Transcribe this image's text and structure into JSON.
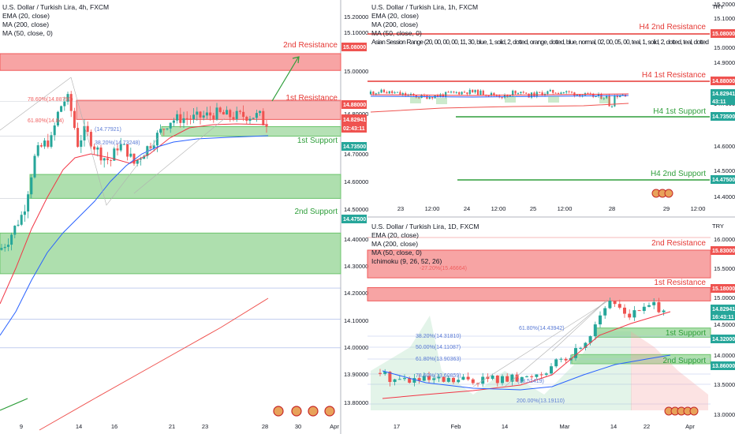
{
  "colors": {
    "bull": "#26a69a",
    "bear": "#ef5350",
    "resistance_zone": "#f05a5a",
    "support_zone": "#6cc46c",
    "resistance_text": "#e53935",
    "support_text": "#2e9e3a",
    "ema": "#f23645",
    "ma200": "#ef5350",
    "ma50": "#2962ff",
    "fib": "#5b7bd5",
    "fib_red": "#f06060",
    "gridline": "#e0e3eb"
  },
  "panels": [
    {
      "id": "h4",
      "header": [
        "U.S. Dollar / Turkish Lira, 4h, FXCM",
        "EMA (20, close)",
        "MA (200, close)",
        "MA (50, close, 0)"
      ],
      "y_ticks": [
        "15.20000",
        "15.10000",
        "15.00000",
        "14.80000",
        "14.70000",
        "14.60000",
        "14.50000",
        "14.40000",
        "14.30000",
        "14.20000",
        "14.10000",
        "14.00000",
        "13.90000",
        "13.80000"
      ],
      "x_ticks": [
        "9",
        "14",
        "16",
        "21",
        "23",
        "28",
        "30",
        "Apr"
      ],
      "levels": [
        {
          "label": "2nd Resistance",
          "price": "15.08000",
          "kind": "res"
        },
        {
          "label": "1st Resistance",
          "price": "14.88000",
          "kind": "res"
        },
        {
          "label": "1st Support",
          "price": "14.73500",
          "kind": "sup"
        },
        {
          "label": "2nd Support",
          "price": "14.47500",
          "kind": "sup"
        }
      ],
      "last_price": "14.82941",
      "countdown": "02:43:11",
      "fibs": [
        "78.60%(14.88799)",
        "61.80%(14.84)",
        "(14.77921)",
        "38.20%(14.73248)"
      ]
    },
    {
      "id": "h1",
      "header": [
        "U.S. Dollar / Turkish Lira, 1h, FXCM",
        "EMA (20, close)",
        "MA (200, close)",
        "MA (50, close, 0)",
        "Asian Session Range (20, 00, 00, 00, 11, 30, blue, 1, solid, 2, dotted, orange, dotted, blue, normal, 02, 00, 05, 00, teal, 1, solid, 2, dotted, teal, dotted"
      ],
      "currency": "TRY",
      "y_ticks": [
        "15.20000",
        "15.10000",
        "15.00000",
        "14.90000",
        "14.80000",
        "14.70000",
        "14.60000",
        "14.50000",
        "14.40000"
      ],
      "x_ticks": [
        "23",
        "12:00",
        "24",
        "12:00",
        "25",
        "12:00",
        "28",
        "29",
        "12:00"
      ],
      "levels": [
        {
          "label": "H4 2nd Resistance",
          "price": "15.08000",
          "kind": "res"
        },
        {
          "label": "H4 1st Resistance",
          "price": "14.88000",
          "kind": "res"
        },
        {
          "label": "H4 1st Support",
          "price": "14.73500",
          "kind": "sup"
        },
        {
          "label": "H4 2nd Support",
          "price": "14.47500",
          "kind": "sup"
        }
      ],
      "last_price": "14.82941",
      "countdown": "43:11"
    },
    {
      "id": "d1",
      "header": [
        "U.S. Dollar / Turkish Lira, 1D, FXCM",
        "EMA (20, close)",
        "MA (200, close)",
        "MA (50, close, 0)",
        "Ichimoku (9, 26, 52, 26)"
      ],
      "currency": "TRY",
      "y_ticks": [
        "16.00000",
        "15.50000",
        "15.00000",
        "14.50000",
        "14.00000",
        "13.50000",
        "13.00000"
      ],
      "x_ticks": [
        "17",
        "Feb",
        "14",
        "Mar",
        "14",
        "22",
        "Apr"
      ],
      "levels": [
        {
          "label": "2nd Resistance",
          "price": "15.83000",
          "kind": "res"
        },
        {
          "label": "1st Resistance",
          "price": "15.18000",
          "kind": "res"
        },
        {
          "label": "1st Support",
          "price": "14.32000",
          "kind": "sup"
        },
        {
          "label": "2nd Support",
          "price": "13.86000",
          "kind": "sup"
        }
      ],
      "last_price": "14.82941",
      "countdown": "16:43:11",
      "fibs": [
        "-27.20%(15.46664)",
        "61.80%(14.43942)",
        "38.20%(14.31810)",
        "50.00%(14.11087)",
        "61.80%(13.90363)",
        "78.60%(13.60859)",
        "(13.51419)",
        "200.00%(13.19110)"
      ]
    }
  ]
}
